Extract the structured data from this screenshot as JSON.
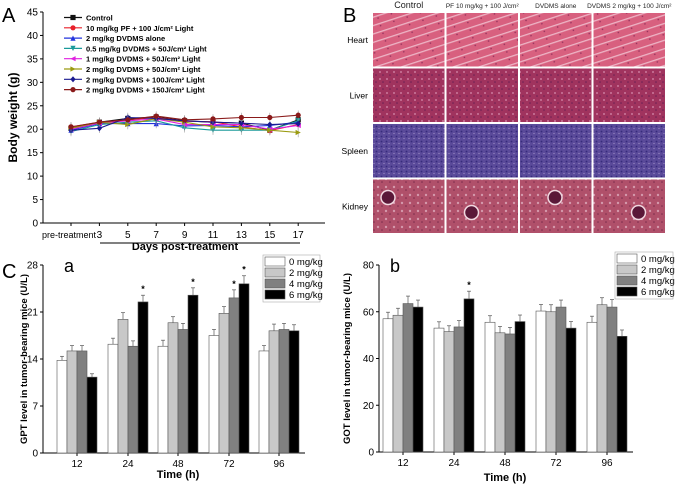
{
  "panels": {
    "A": "A",
    "B": "B",
    "C": "C",
    "a": "a",
    "b": "b"
  },
  "histology": {
    "columns": [
      "Control",
      "PF 10 mg/kg + 100 J/cm²",
      "DVDMS alone",
      "DVDMS 2 mg/kg + 100 J/cm²"
    ],
    "rows": [
      "Heart",
      "Liver",
      "Spleen",
      "Kidney"
    ],
    "colors": {
      "Heart": "#d9607f",
      "Liver": "#a0335e",
      "Spleen": "#5a4a9a",
      "Kidney": "#b0506a"
    }
  },
  "chart_data": [
    {
      "id": "A",
      "type": "line",
      "xlabel": "Days post-treatment",
      "ylabel": "Body weight (g)",
      "categories": [
        "pre-treatment",
        "3",
        "5",
        "7",
        "9",
        "11",
        "13",
        "15",
        "17"
      ],
      "ylim": [
        0,
        45
      ],
      "yticks": [
        0,
        5,
        10,
        15,
        20,
        25,
        30,
        35,
        40,
        45
      ],
      "legend_position": "top-left",
      "series": [
        {
          "name": "Control",
          "color": "#111111",
          "marker": "square",
          "values": [
            20.2,
            21.5,
            22.3,
            22.6,
            21.8,
            21.5,
            21.3,
            19.8,
            22.0
          ]
        },
        {
          "name": "10 mg/kg PF + 100 J/cm² Light",
          "color": "#e8202a",
          "marker": "circle",
          "values": [
            20.5,
            21.5,
            22.0,
            22.5,
            21.7,
            21.6,
            20.5,
            19.7,
            21.0
          ]
        },
        {
          "name": "2 mg/kg DVDMS alone",
          "color": "#2233dd",
          "marker": "triangle-up",
          "values": [
            19.8,
            21.2,
            21.2,
            21.2,
            20.7,
            20.8,
            20.5,
            20.8,
            21.5
          ]
        },
        {
          "name": "0.5 mg/kg DVDMS + 50J/cm² Light",
          "color": "#1a9a9a",
          "marker": "triangle-down",
          "values": [
            19.5,
            21.0,
            21.5,
            21.8,
            20.3,
            19.8,
            19.8,
            19.8,
            21.8
          ]
        },
        {
          "name": "1 mg/kg DVDMS + 50J/cm² Light",
          "color": "#e020e0",
          "marker": "triangle-left",
          "values": [
            20.0,
            21.3,
            21.8,
            22.2,
            21.0,
            21.0,
            21.0,
            20.0,
            20.8
          ]
        },
        {
          "name": "2 mg/kg DVDMS + 50J/cm² Light",
          "color": "#9a9a10",
          "marker": "triangle-right",
          "values": [
            20.2,
            21.5,
            21.0,
            22.3,
            21.5,
            20.5,
            20.3,
            19.8,
            19.3
          ]
        },
        {
          "name": "2 mg/kg DVDMS + 100J/cm² Light",
          "color": "#1a1a90",
          "marker": "diamond",
          "values": [
            19.8,
            20.2,
            22.5,
            22.3,
            21.8,
            21.5,
            21.3,
            21.0,
            21.2
          ]
        },
        {
          "name": "2 mg/kg DVDMS + 150J/cm² Light",
          "color": "#8a1a1a",
          "marker": "hexagon",
          "values": [
            20.5,
            21.5,
            22.0,
            22.8,
            22.0,
            22.2,
            22.5,
            22.5,
            23.0
          ]
        }
      ]
    },
    {
      "id": "a",
      "type": "bar",
      "xlabel": "Time (h)",
      "ylabel": "GPT level in tumor-bearing mice (U/L)",
      "categories": [
        "12",
        "24",
        "48",
        "72",
        "96"
      ],
      "ylim": [
        0,
        28
      ],
      "yticks": [
        0,
        7,
        14,
        21,
        28
      ],
      "legend_position": "top-right",
      "series": [
        {
          "name": "0 mg/kg",
          "color": "#ffffff",
          "values": [
            13.8,
            16.2,
            15.9,
            17.5,
            15.2
          ],
          "errors": [
            0.6,
            0.9,
            0.9,
            0.9,
            0.8
          ]
        },
        {
          "name": "2 mg/kg",
          "color": "#c8c8c8",
          "values": [
            15.2,
            19.9,
            19.4,
            20.8,
            18.2
          ],
          "errors": [
            0.8,
            1.0,
            0.9,
            1.0,
            1.0
          ]
        },
        {
          "name": "4 mg/kg",
          "color": "#808080",
          "values": [
            15.2,
            15.9,
            18.4,
            23.1,
            18.4
          ],
          "errors": [
            0.8,
            0.8,
            0.9,
            1.2,
            0.9
          ]
        },
        {
          "name": "6 mg/kg",
          "color": "#000000",
          "values": [
            11.3,
            22.5,
            23.5,
            25.2,
            18.2
          ],
          "errors": [
            0.5,
            1.0,
            1.1,
            1.2,
            0.9
          ]
        }
      ],
      "significance": [
        {
          "category": "24",
          "series": "6 mg/kg",
          "mark": "*"
        },
        {
          "category": "48",
          "series": "6 mg/kg",
          "mark": "*"
        },
        {
          "category": "72",
          "series": "4 mg/kg",
          "mark": "*"
        },
        {
          "category": "72",
          "series": "6 mg/kg",
          "mark": "*"
        }
      ]
    },
    {
      "id": "b",
      "type": "bar",
      "xlabel": "Time (h)",
      "ylabel": "GOT level in tumor-bearing mice (U/L)",
      "categories": [
        "12",
        "24",
        "48",
        "72",
        "96"
      ],
      "ylim": [
        0,
        80
      ],
      "yticks": [
        0,
        20,
        40,
        60,
        80
      ],
      "legend_position": "top-right",
      "series": [
        {
          "name": "0 mg/kg",
          "color": "#ffffff",
          "values": [
            57,
            53,
            55.5,
            60.3,
            55.5
          ],
          "errors": [
            2.8,
            2.7,
            2.8,
            2.8,
            2.6
          ]
        },
        {
          "name": "2 mg/kg",
          "color": "#c8c8c8",
          "values": [
            58.5,
            51.5,
            51,
            60,
            63
          ],
          "errors": [
            3.0,
            2.5,
            2.7,
            3.0,
            3.0
          ]
        },
        {
          "name": "4 mg/kg",
          "color": "#808080",
          "values": [
            63.5,
            53.5,
            50.5,
            62,
            62
          ],
          "errors": [
            3.2,
            2.7,
            2.8,
            3.0,
            3.2
          ]
        },
        {
          "name": "6 mg/kg",
          "color": "#000000",
          "values": [
            62,
            65.5,
            55.8,
            53,
            49.5
          ],
          "errors": [
            3.0,
            3.3,
            2.8,
            2.8,
            2.7
          ]
        }
      ],
      "significance": [
        {
          "category": "24",
          "series": "6 mg/kg",
          "mark": "*"
        }
      ]
    }
  ]
}
